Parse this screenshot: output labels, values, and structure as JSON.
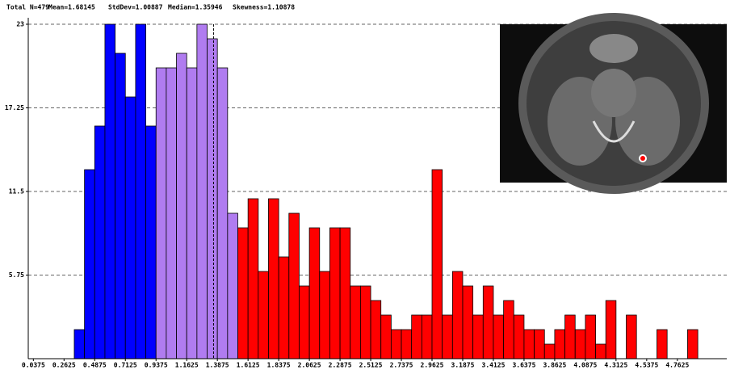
{
  "chart_data": {
    "type": "histogram",
    "header": [
      "Total N=479",
      "Mean=1.68145",
      "StdDev=1.00887",
      "Median=1.35946",
      "Skewness=1.10878"
    ],
    "bins": [
      0.3375,
      0.4125,
      0.4875,
      0.5625,
      0.6375,
      0.7125,
      0.7875,
      0.8625,
      0.9375,
      1.0125,
      1.0875,
      1.1625,
      1.2375,
      1.3125,
      1.3875,
      1.4625,
      1.5375,
      1.6125,
      1.6875,
      1.7625,
      1.8375,
      1.9125,
      1.9875,
      2.0625,
      2.1375,
      2.2125,
      2.2875,
      2.3625,
      2.4375,
      2.5125,
      2.5875,
      2.6625,
      2.7375,
      2.8125,
      2.8875,
      2.9625,
      3.0375,
      3.1125,
      3.1875,
      3.2625,
      3.3375,
      3.4125,
      3.4875,
      3.5625,
      3.6375,
      3.7125,
      3.7875,
      3.8625,
      3.9375,
      4.0125,
      4.0875,
      4.1625,
      4.2375,
      4.3125,
      4.3875,
      4.4625,
      4.5375,
      4.6125,
      4.6875,
      4.7625,
      4.8375,
      4.9125
    ],
    "counts": [
      2,
      13,
      16,
      23,
      21,
      18,
      23,
      16,
      20,
      20,
      21,
      20,
      23,
      22,
      20,
      10,
      9,
      11,
      6,
      11,
      7,
      10,
      5,
      9,
      6,
      9,
      9,
      5,
      5,
      4,
      3,
      2,
      2,
      3,
      3,
      13,
      3,
      6,
      5,
      3,
      5,
      3,
      4,
      3,
      2,
      2,
      1,
      2,
      3,
      2,
      3,
      1,
      4,
      0,
      3,
      0,
      0,
      2,
      0,
      0,
      2
    ],
    "colors": [
      "#0000ff",
      "#0000ff",
      "#0000ff",
      "#0000ff",
      "#0000ff",
      "#0000ff",
      "#0000ff",
      "#0000ff",
      "#b07cf0",
      "#b07cf0",
      "#b07cf0",
      "#b07cf0",
      "#b07cf0",
      "#b07cf0",
      "#b07cf0",
      "#b07cf0",
      "#ff0000",
      "#ff0000",
      "#ff0000",
      "#ff0000",
      "#ff0000",
      "#ff0000",
      "#ff0000",
      "#ff0000",
      "#ff0000",
      "#ff0000",
      "#ff0000",
      "#ff0000",
      "#ff0000",
      "#ff0000",
      "#ff0000",
      "#ff0000",
      "#ff0000",
      "#ff0000",
      "#ff0000",
      "#ff0000",
      "#ff0000",
      "#ff0000",
      "#ff0000",
      "#ff0000",
      "#ff0000",
      "#ff0000",
      "#ff0000",
      "#ff0000",
      "#ff0000",
      "#ff0000",
      "#ff0000",
      "#ff0000",
      "#ff0000",
      "#ff0000",
      "#ff0000",
      "#ff0000",
      "#ff0000",
      "#ff0000",
      "#ff0000",
      "#ff0000",
      "#ff0000",
      "#ff0000",
      "#ff0000",
      "#ff0000",
      "#ff0000"
    ],
    "median_line": 1.35946,
    "xlim": [
      0,
      5.125
    ],
    "ylim": [
      0,
      23
    ],
    "xticks": [
      0.0375,
      0.2625,
      0.4875,
      0.7125,
      0.9375,
      1.1625,
      1.3875,
      1.6125,
      1.8375,
      2.0625,
      2.2875,
      2.5125,
      2.7375,
      2.9625,
      3.1875,
      3.4125,
      3.6375,
      3.8625,
      4.0875,
      4.3125,
      4.5375,
      4.7625
    ],
    "yticks": [
      5.75,
      11.5,
      17.25,
      23
    ],
    "grid": true
  }
}
